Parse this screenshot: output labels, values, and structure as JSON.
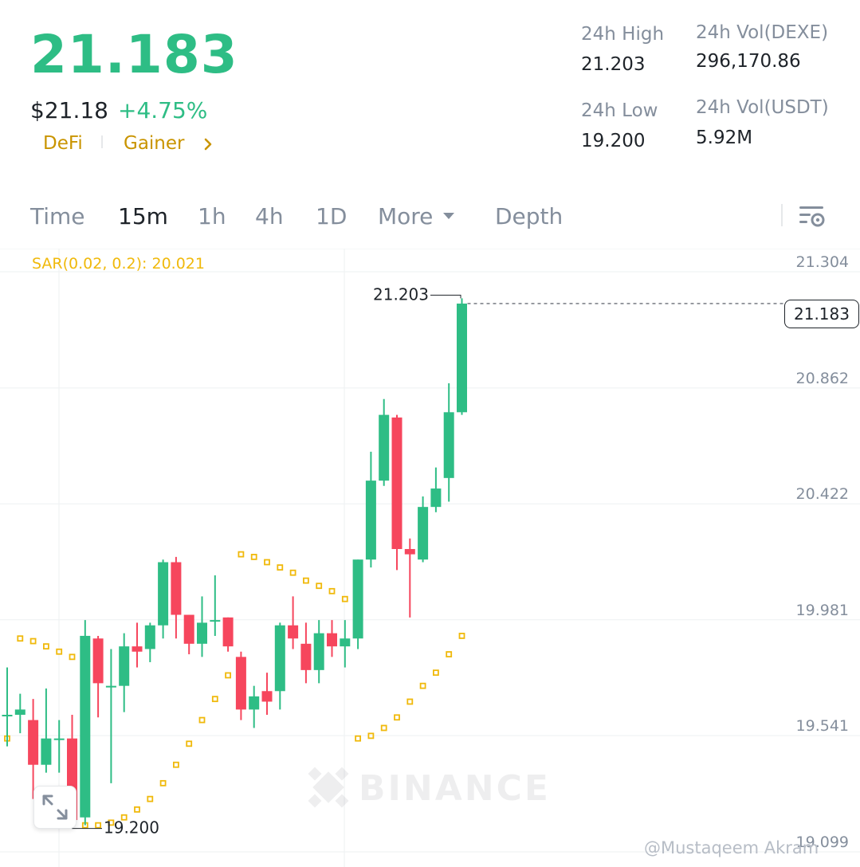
{
  "ticker": {
    "last_price": "21.183",
    "usd_price": "$21.18",
    "change_pct": "+4.75%",
    "tags": [
      "DeFi",
      "Gainer"
    ]
  },
  "stats": {
    "high_label": "24h High",
    "high_value": "21.203",
    "low_label": "24h Low",
    "low_value": "19.200",
    "vol_base_label": "24h Vol(DEXE)",
    "vol_base_value": "296,170.86",
    "vol_quote_label": "24h Vol(USDT)",
    "vol_quote_value": "5.92M"
  },
  "tabs": [
    {
      "label": "Time",
      "active": false
    },
    {
      "label": "15m",
      "active": true
    },
    {
      "label": "1h",
      "active": false
    },
    {
      "label": "4h",
      "active": false
    },
    {
      "label": "1D",
      "active": false
    },
    {
      "label": "More",
      "active": false
    },
    {
      "label": "Depth",
      "active": false
    }
  ],
  "indicator_label": "SAR(0.02, 0.2): 20.021",
  "watermark": "@Mustaqeem Akram",
  "colors": {
    "up": "#2ebd85",
    "down": "#f6465d",
    "sar": "#f0b90b",
    "accent": "#c99400"
  },
  "icons": {
    "settings": "chart-settings-icon",
    "expand": "expand-icon",
    "more_caret": "caret-down-icon"
  },
  "chart_data": {
    "type": "candlestick",
    "y_ticks": [
      "21.304",
      "20.862",
      "20.422",
      "19.981",
      "19.541",
      "19.099"
    ],
    "ylim": [
      19.05,
      21.34
    ],
    "last_price_label": "21.183",
    "high_annotation": "21.203",
    "low_annotation": "19.200",
    "candles": [
      {
        "o": 19.62,
        "h": 19.8,
        "l": 19.5,
        "c": 19.62
      },
      {
        "o": 19.62,
        "h": 19.7,
        "l": 19.55,
        "c": 19.64
      },
      {
        "o": 19.6,
        "h": 19.68,
        "l": 19.3,
        "c": 19.43
      },
      {
        "o": 19.43,
        "h": 19.72,
        "l": 19.4,
        "c": 19.53
      },
      {
        "o": 19.53,
        "h": 19.6,
        "l": 19.4,
        "c": 19.53
      },
      {
        "o": 19.53,
        "h": 19.62,
        "l": 19.2,
        "c": 19.22
      },
      {
        "o": 19.23,
        "h": 19.98,
        "l": 19.2,
        "c": 19.92
      },
      {
        "o": 19.91,
        "h": 19.92,
        "l": 19.61,
        "c": 19.74
      },
      {
        "o": 19.73,
        "h": 19.87,
        "l": 19.36,
        "c": 19.73
      },
      {
        "o": 19.73,
        "h": 19.93,
        "l": 19.63,
        "c": 19.88
      },
      {
        "o": 19.88,
        "h": 19.97,
        "l": 19.8,
        "c": 19.86
      },
      {
        "o": 19.87,
        "h": 19.97,
        "l": 19.82,
        "c": 19.96
      },
      {
        "o": 19.96,
        "h": 20.21,
        "l": 19.91,
        "c": 20.2
      },
      {
        "o": 20.2,
        "h": 20.22,
        "l": 19.91,
        "c": 20.0
      },
      {
        "o": 20.0,
        "h": 20.0,
        "l": 19.85,
        "c": 19.89
      },
      {
        "o": 19.89,
        "h": 20.07,
        "l": 19.84,
        "c": 19.97
      },
      {
        "o": 19.98,
        "h": 20.15,
        "l": 19.92,
        "c": 19.98
      },
      {
        "o": 19.99,
        "h": 19.99,
        "l": 19.86,
        "c": 19.88
      },
      {
        "o": 19.84,
        "h": 19.86,
        "l": 19.6,
        "c": 19.64
      },
      {
        "o": 19.64,
        "h": 19.73,
        "l": 19.57,
        "c": 19.69
      },
      {
        "o": 19.71,
        "h": 19.78,
        "l": 19.62,
        "c": 19.67
      },
      {
        "o": 19.71,
        "h": 19.97,
        "l": 19.64,
        "c": 19.96
      },
      {
        "o": 19.96,
        "h": 20.07,
        "l": 19.87,
        "c": 19.91
      },
      {
        "o": 19.89,
        "h": 19.97,
        "l": 19.74,
        "c": 19.79
      },
      {
        "o": 19.79,
        "h": 19.98,
        "l": 19.74,
        "c": 19.93
      },
      {
        "o": 19.93,
        "h": 19.98,
        "l": 19.84,
        "c": 19.88
      },
      {
        "o": 19.88,
        "h": 19.98,
        "l": 19.8,
        "c": 19.91
      },
      {
        "o": 19.91,
        "h": 20.21,
        "l": 19.87,
        "c": 20.21
      },
      {
        "o": 20.21,
        "h": 20.62,
        "l": 20.18,
        "c": 20.51
      },
      {
        "o": 20.51,
        "h": 20.82,
        "l": 20.49,
        "c": 20.76
      },
      {
        "o": 20.75,
        "h": 20.76,
        "l": 20.17,
        "c": 20.25
      },
      {
        "o": 20.25,
        "h": 20.29,
        "l": 19.99,
        "c": 20.23
      },
      {
        "o": 20.21,
        "h": 20.45,
        "l": 20.2,
        "c": 20.41
      },
      {
        "o": 20.41,
        "h": 20.56,
        "l": 20.39,
        "c": 20.48
      },
      {
        "o": 20.52,
        "h": 20.88,
        "l": 20.43,
        "c": 20.77
      },
      {
        "o": 20.77,
        "h": 21.203,
        "l": 20.76,
        "c": 21.183
      }
    ],
    "sar": [
      {
        "i": 0,
        "v": 19.53
      },
      {
        "i": 1,
        "v": 19.91
      },
      {
        "i": 2,
        "v": 19.9
      },
      {
        "i": 3,
        "v": 19.88
      },
      {
        "i": 4,
        "v": 19.86
      },
      {
        "i": 5,
        "v": 19.84
      },
      {
        "i": 6,
        "v": 19.2
      },
      {
        "i": 7,
        "v": 19.2
      },
      {
        "i": 8,
        "v": 19.21
      },
      {
        "i": 9,
        "v": 19.23
      },
      {
        "i": 10,
        "v": 19.26
      },
      {
        "i": 11,
        "v": 19.3
      },
      {
        "i": 12,
        "v": 19.36
      },
      {
        "i": 13,
        "v": 19.43
      },
      {
        "i": 14,
        "v": 19.51
      },
      {
        "i": 15,
        "v": 19.6
      },
      {
        "i": 16,
        "v": 19.68
      },
      {
        "i": 17,
        "v": 19.77
      },
      {
        "i": 18,
        "v": 20.23
      },
      {
        "i": 19,
        "v": 20.22
      },
      {
        "i": 20,
        "v": 20.2
      },
      {
        "i": 21,
        "v": 20.18
      },
      {
        "i": 22,
        "v": 20.16
      },
      {
        "i": 23,
        "v": 20.13
      },
      {
        "i": 24,
        "v": 20.11
      },
      {
        "i": 25,
        "v": 20.09
      },
      {
        "i": 26,
        "v": 20.06
      },
      {
        "i": 27,
        "v": 19.53
      },
      {
        "i": 28,
        "v": 19.54
      },
      {
        "i": 29,
        "v": 19.57
      },
      {
        "i": 30,
        "v": 19.61
      },
      {
        "i": 31,
        "v": 19.67
      },
      {
        "i": 32,
        "v": 19.73
      },
      {
        "i": 33,
        "v": 19.78
      },
      {
        "i": 34,
        "v": 19.85
      },
      {
        "i": 35,
        "v": 19.92
      }
    ]
  }
}
